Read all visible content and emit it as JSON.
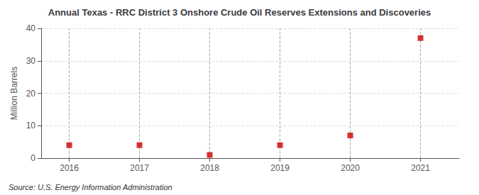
{
  "chart_data": {
    "type": "scatter",
    "title": "Annual Texas - RRC District 3 Onshore Crude Oil Reserves Extensions and Discoveries",
    "ylabel": "Million Barrels",
    "annotations": [
      "Source: U.S. Energy Information Administration"
    ],
    "x": [
      2016,
      2017,
      2018,
      2019,
      2020,
      2021
    ],
    "values": [
      4.0,
      4.0,
      1.0,
      4.0,
      7.0,
      37.0
    ],
    "color": "#cc0000",
    "marker": "square",
    "xlim": [
      2015.6,
      2021.55
    ],
    "xticks": [
      2016,
      2017,
      2018,
      2019,
      2020,
      2021
    ],
    "ylim": [
      0,
      40
    ],
    "yticks": [
      0,
      10,
      20,
      30,
      40
    ],
    "grid": true
  }
}
